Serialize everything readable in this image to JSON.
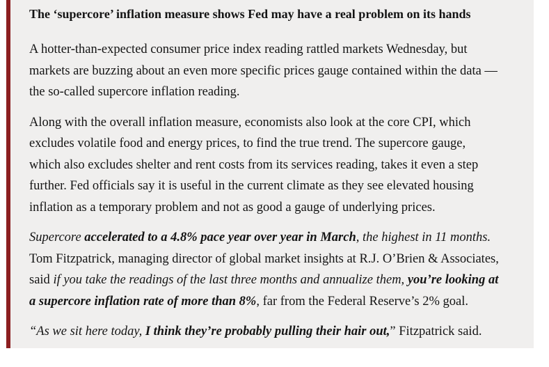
{
  "article": {
    "accent_color": "#8c1f20",
    "background_color": "#f0efee",
    "text_color": "#141414",
    "headline": "The ‘supercore’ inflation measure shows Fed may have a real problem on its hands",
    "paragraphs": [
      {
        "lines": [
          [
            {
              "t": "A hotter-than-expected consumer price index reading rattled markets Wednesday, but",
              "s": "r"
            }
          ],
          [
            {
              "t": "markets are buzzing about an even more specific prices gauge contained within the data —",
              "s": "r"
            }
          ],
          [
            {
              "t": "the so-called supercore inflation reading.",
              "s": "r"
            }
          ]
        ]
      },
      {
        "lines": [
          [
            {
              "t": "Along with the overall inflation measure, economists also look at the core CPI, which",
              "s": "r"
            }
          ],
          [
            {
              "t": "excludes volatile food and energy prices, to find the true trend. The supercore gauge,",
              "s": "r"
            }
          ],
          [
            {
              "t": "which also excludes shelter and rent costs from its services reading, takes it even a step",
              "s": "r"
            }
          ],
          [
            {
              "t": "further. Fed officials say it is useful in the current climate as they see elevated housing",
              "s": "r"
            }
          ],
          [
            {
              "t": "inflation as a temporary problem and not as good a gauge of underlying prices.",
              "s": "r"
            }
          ]
        ]
      },
      {
        "lines": [
          [
            {
              "t": "Supercore ",
              "s": "i"
            },
            {
              "t": "accelerated to a 4.8% pace year over year in March",
              "s": "bi"
            },
            {
              "t": ", the highest in 11 months.",
              "s": "i"
            }
          ],
          [
            {
              "t": "Tom Fitzpatrick, managing director of global market insights at R.J. O’Brien & Associates,",
              "s": "r"
            }
          ],
          [
            {
              "t": "said ",
              "s": "r"
            },
            {
              "t": "if you take the readings of the last three months and annualize them,",
              "s": "i"
            },
            {
              "t": " ",
              "s": "r"
            },
            {
              "t": "you’re looking at",
              "s": "bi"
            }
          ],
          [
            {
              "t": "a supercore inflation rate of more than 8%",
              "s": "bi"
            },
            {
              "t": ", far from the Federal Reserve’s 2% goal.",
              "s": "r"
            }
          ]
        ]
      },
      {
        "lines": [
          [
            {
              "t": "“As we sit here today, ",
              "s": "i"
            },
            {
              "t": "I think they’re probably pulling their hair out,",
              "s": "bi"
            },
            {
              "t": "” Fitzpatrick said.",
              "s": "r"
            }
          ]
        ]
      }
    ]
  }
}
